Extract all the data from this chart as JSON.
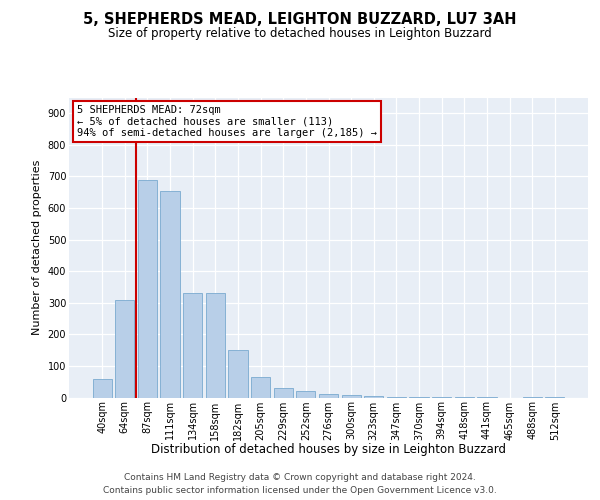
{
  "title": "5, SHEPHERDS MEAD, LEIGHTON BUZZARD, LU7 3AH",
  "subtitle": "Size of property relative to detached houses in Leighton Buzzard",
  "xlabel": "Distribution of detached houses by size in Leighton Buzzard",
  "ylabel": "Number of detached properties",
  "footer_line1": "Contains HM Land Registry data © Crown copyright and database right 2024.",
  "footer_line2": "Contains public sector information licensed under the Open Government Licence v3.0.",
  "annotation_line1": "5 SHEPHERDS MEAD: 72sqm",
  "annotation_line2": "← 5% of detached houses are smaller (113)",
  "annotation_line3": "94% of semi-detached houses are larger (2,185) →",
  "bar_color": "#b8cfe8",
  "bar_edge_color": "#7aaad0",
  "vline_color": "#cc0000",
  "annotation_box_edgecolor": "#cc0000",
  "background_color": "#e8eef6",
  "bins": [
    "40sqm",
    "64sqm",
    "87sqm",
    "111sqm",
    "134sqm",
    "158sqm",
    "182sqm",
    "205sqm",
    "229sqm",
    "252sqm",
    "276sqm",
    "300sqm",
    "323sqm",
    "347sqm",
    "370sqm",
    "394sqm",
    "418sqm",
    "441sqm",
    "465sqm",
    "488sqm",
    "512sqm"
  ],
  "values": [
    60,
    310,
    690,
    655,
    330,
    330,
    150,
    65,
    30,
    20,
    10,
    8,
    5,
    3,
    3,
    2,
    1,
    2,
    0,
    2,
    1
  ],
  "vline_x": 1.5,
  "ylim": [
    0,
    950
  ],
  "yticks": [
    0,
    100,
    200,
    300,
    400,
    500,
    600,
    700,
    800,
    900
  ],
  "title_fontsize": 10.5,
  "subtitle_fontsize": 8.5,
  "xlabel_fontsize": 8.5,
  "ylabel_fontsize": 8,
  "tick_fontsize": 7,
  "annotation_fontsize": 7.5,
  "footer_fontsize": 6.5
}
